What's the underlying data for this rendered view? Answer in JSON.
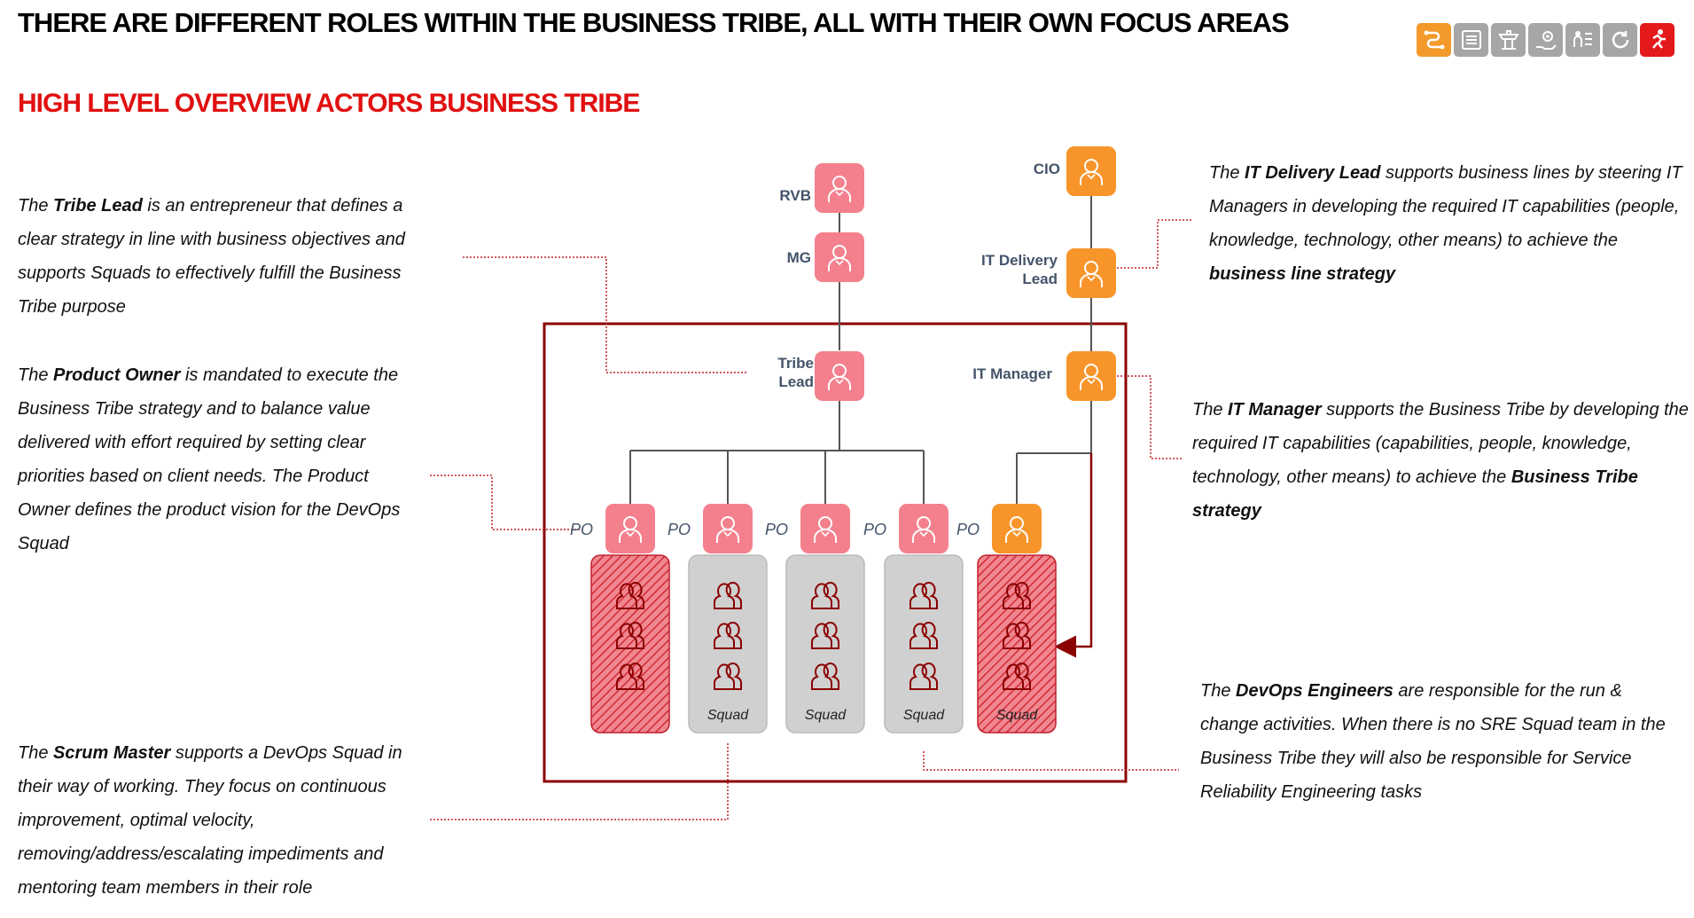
{
  "header": {
    "title": "THERE ARE DIFFERENT ROLES WITHIN THE BUSINESS TRIBE, ALL WITH THEIR OWN FOCUS AREAS",
    "subtitle": "HIGH LEVEL OVERVIEW ACTORS BUSINESS TRIBE"
  },
  "nav_icons": [
    {
      "name": "process-icon",
      "color": "#f39a2b"
    },
    {
      "name": "list-icon",
      "color": "#a6a6a6"
    },
    {
      "name": "tower-icon",
      "color": "#a6a6a6"
    },
    {
      "name": "hand-gear-icon",
      "color": "#a6a6a6"
    },
    {
      "name": "people-checklist-icon",
      "color": "#a6a6a6"
    },
    {
      "name": "cycle-icon",
      "color": "#a6a6a6"
    },
    {
      "name": "run-icon",
      "color": "#e3191b"
    }
  ],
  "colors": {
    "pink": "#f4808e",
    "orange": "#f7952b",
    "dark_red": "#8b0000",
    "squad_gray": "#d0d0d0",
    "squad_red": "#e8505b"
  },
  "descriptions": {
    "tribe_lead": [
      {
        "t": "The ",
        "b": false
      },
      {
        "t": "Tribe Lead",
        "b": true
      },
      {
        "t": " is an entrepreneur that defines a clear strategy in line with business objectives and supports Squads to effectively fulfill the Business Tribe purpose",
        "b": false
      }
    ],
    "product_owner": [
      {
        "t": "The ",
        "b": false
      },
      {
        "t": "Product Owner",
        "b": true
      },
      {
        "t": " is mandated to execute the Business Tribe strategy and to balance value delivered with effort required by setting clear priorities based on client needs. The Product Owner defines the product vision for the DevOps Squad",
        "b": false
      }
    ],
    "scrum_master": [
      {
        "t": "The ",
        "b": false
      },
      {
        "t": "Scrum Master",
        "b": true
      },
      {
        "t": " supports a DevOps Squad in their way of working. They focus on continuous improvement, optimal velocity, removing/address/escalating impediments and mentoring team members in their role",
        "b": false
      }
    ],
    "it_delivery_lead": [
      {
        "t": "The ",
        "b": false
      },
      {
        "t": "IT Delivery Lead",
        "b": true
      },
      {
        "t": " supports business lines by steering IT Managers in developing the required IT capabilities (people, knowledge, technology, other means) to achieve the ",
        "b": false
      },
      {
        "t": "business line strategy",
        "b": true
      }
    ],
    "it_manager": [
      {
        "t": "The ",
        "b": false
      },
      {
        "t": "IT Manager",
        "b": true
      },
      {
        "t": " supports the Business Tribe by developing the required IT capabilities (capabilities, people, knowledge, technology, other means) to achieve the ",
        "b": false
      },
      {
        "t": "Business Tribe strategy",
        "b": true
      }
    ],
    "devops_engineers": [
      {
        "t": "The ",
        "b": false
      },
      {
        "t": "DevOps Engineers",
        "b": true
      },
      {
        "t": " are responsible for the run & change activities. When there is no SRE Squad team in the Business Tribe they will also be responsible for Service Reliability Engineering tasks",
        "b": false
      }
    ]
  },
  "diagram": {
    "labels": {
      "rvb": "RVB",
      "mg": "MG",
      "cio": "CIO",
      "it_delivery_lead": [
        "IT Delivery",
        "Lead"
      ],
      "tribe_lead": [
        "Tribe",
        "Lead"
      ],
      "it_manager": "IT Manager",
      "po": "PO",
      "squad": "Squad"
    },
    "squads": [
      {
        "style": "red-hatched",
        "po_color": "pink",
        "label": ""
      },
      {
        "style": "gray",
        "po_color": "pink",
        "label": "Squad"
      },
      {
        "style": "gray",
        "po_color": "pink",
        "label": "Squad"
      },
      {
        "style": "gray",
        "po_color": "pink",
        "label": "Squad"
      },
      {
        "style": "red-hatched",
        "po_color": "orange",
        "label": "Squad"
      }
    ]
  }
}
